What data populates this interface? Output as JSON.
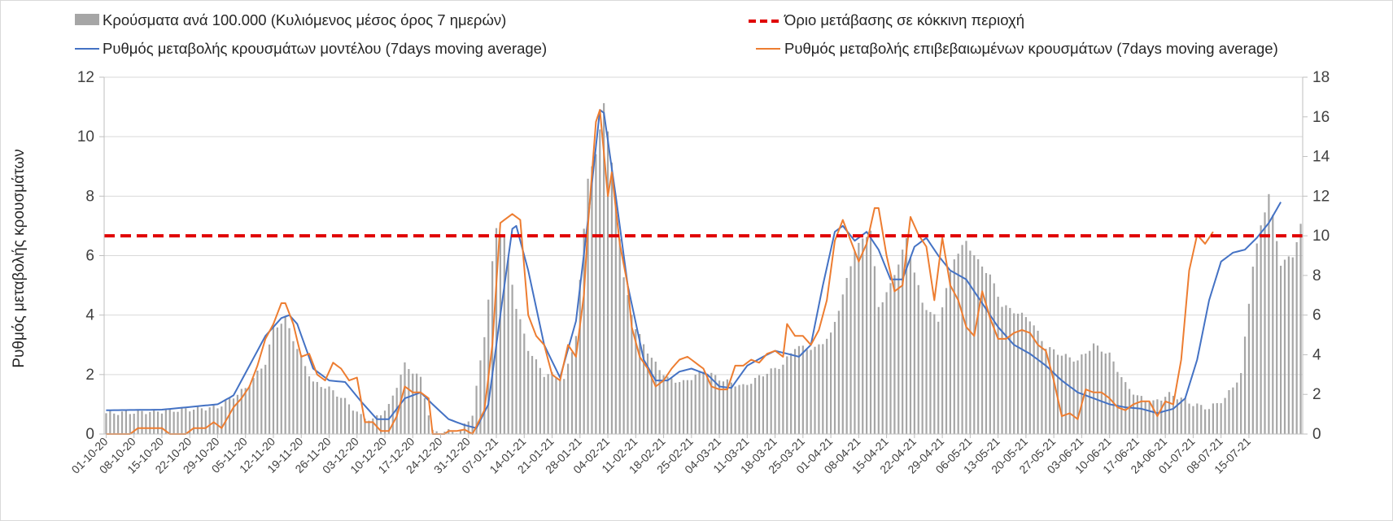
{
  "chart_data": {
    "type": "bar+line",
    "ylabel": "Ρυθμός μεταβολής κρουσμάτων",
    "y_left_range": [
      0,
      12
    ],
    "y_left_ticks": [
      "0",
      "2",
      "4",
      "6",
      "8",
      "10",
      "12"
    ],
    "y_right_range": [
      0,
      18
    ],
    "y_right_ticks": [
      "0",
      "2",
      "4",
      "6",
      "8",
      "10",
      "12",
      "14",
      "16",
      "18"
    ],
    "x_tick_labels": [
      "01-10-20",
      "08-10-20",
      "15-10-20",
      "22-10-20",
      "29-10-20",
      "05-11-20",
      "12-11-20",
      "19-11-20",
      "26-11-20",
      "03-12-20",
      "10-12-20",
      "17-12-20",
      "24-12-20",
      "31-12-20",
      "07-01-21",
      "14-01-21",
      "21-01-21",
      "28-01-21",
      "04-02-21",
      "11-02-21",
      "18-02-21",
      "25-02-21",
      "04-03-21",
      "11-03-21",
      "18-03-21",
      "25-03-21",
      "01-04-21",
      "08-04-21",
      "15-04-21",
      "22-04-21",
      "29-04-21",
      "06-05-21",
      "13-05-21",
      "20-05-21",
      "27-05-21",
      "03-06-21",
      "10-06-21",
      "17-06-21",
      "24-06-21",
      "01-07-21",
      "08-07-21",
      "15-07-21"
    ],
    "grid": "horizontal",
    "legend_position": "top",
    "threshold": {
      "name": "Όριο μετάβασης σε κόκκινη περιοχή",
      "value": 10,
      "axis": "right",
      "color": "#e00000"
    },
    "series": [
      {
        "name": "Κρούσματα ανά 100.000 (Κυλιόμενος μέσος όρος 7 ημερών)",
        "type": "bar",
        "axis": "right",
        "color": "#a6a6a6",
        "keyframes": [
          [
            0,
            1.05
          ],
          [
            14,
            1.15
          ],
          [
            28,
            1.35
          ],
          [
            35,
            2.3
          ],
          [
            40,
            3.6
          ],
          [
            42,
            5.3
          ],
          [
            45,
            5.8
          ],
          [
            48,
            4.3
          ],
          [
            52,
            2.6
          ],
          [
            56,
            2.3
          ],
          [
            60,
            1.7
          ],
          [
            64,
            0.9
          ],
          [
            67,
            0.7
          ],
          [
            71,
            1.4
          ],
          [
            75,
            3.5
          ],
          [
            79,
            2.8
          ],
          [
            82,
            0.1
          ],
          [
            89,
            0.15
          ],
          [
            92,
            1.0
          ],
          [
            95,
            5.0
          ],
          [
            98,
            10.4
          ],
          [
            100,
            10.0
          ],
          [
            103,
            6.4
          ],
          [
            106,
            4.3
          ],
          [
            110,
            3.0
          ],
          [
            112,
            3.0
          ],
          [
            115,
            2.7
          ],
          [
            118,
            5.0
          ],
          [
            121,
            13.0
          ],
          [
            123,
            14.0
          ],
          [
            125,
            16.8
          ],
          [
            128,
            12.0
          ],
          [
            130,
            7.8
          ],
          [
            133,
            5.3
          ],
          [
            137,
            3.8
          ],
          [
            141,
            2.8
          ],
          [
            145,
            2.6
          ],
          [
            150,
            3.2
          ],
          [
            155,
            2.7
          ],
          [
            160,
            2.4
          ],
          [
            165,
            3.0
          ],
          [
            170,
            3.5
          ],
          [
            173,
            4.4
          ],
          [
            178,
            4.3
          ],
          [
            182,
            5.0
          ],
          [
            185,
            7.0
          ],
          [
            188,
            9.3
          ],
          [
            192,
            10.3
          ],
          [
            194,
            6.4
          ],
          [
            197,
            7.5
          ],
          [
            201,
            9.8
          ],
          [
            205,
            6.6
          ],
          [
            209,
            5.7
          ],
          [
            213,
            8.9
          ],
          [
            216,
            9.7
          ],
          [
            219,
            8.7
          ],
          [
            222,
            8.0
          ],
          [
            225,
            6.5
          ],
          [
            228,
            6.2
          ],
          [
            232,
            5.8
          ],
          [
            236,
            4.4
          ],
          [
            240,
            4.0
          ],
          [
            244,
            3.7
          ],
          [
            248,
            4.5
          ],
          [
            252,
            4.0
          ],
          [
            256,
            2.5
          ],
          [
            259,
            1.9
          ],
          [
            263,
            1.6
          ],
          [
            267,
            2.0
          ],
          [
            270,
            1.8
          ],
          [
            273,
            1.5
          ],
          [
            277,
            1.3
          ],
          [
            281,
            1.8
          ],
          [
            285,
            3.0
          ],
          [
            288,
            8.5
          ],
          [
            290,
            10.5
          ],
          [
            292,
            12.1
          ],
          [
            295,
            8.6
          ],
          [
            298,
            9.0
          ],
          [
            300,
            10.5
          ]
        ]
      },
      {
        "name": "Ρυθμός μεταβολής κρουσμάτων μοντέλου (7days moving average)",
        "type": "line",
        "axis": "left",
        "color": "#4472c4",
        "keyframes": [
          [
            0,
            0.8
          ],
          [
            14,
            0.82
          ],
          [
            28,
            1.0
          ],
          [
            32,
            1.3
          ],
          [
            36,
            2.3
          ],
          [
            40,
            3.3
          ],
          [
            44,
            3.9
          ],
          [
            46,
            4.0
          ],
          [
            48,
            3.7
          ],
          [
            52,
            2.2
          ],
          [
            56,
            1.8
          ],
          [
            60,
            1.75
          ],
          [
            64,
            1.1
          ],
          [
            68,
            0.5
          ],
          [
            71,
            0.5
          ],
          [
            75,
            1.2
          ],
          [
            79,
            1.4
          ],
          [
            82,
            1.0
          ],
          [
            86,
            0.5
          ],
          [
            90,
            0.3
          ],
          [
            93,
            0.2
          ],
          [
            96,
            1.0
          ],
          [
            99,
            4.0
          ],
          [
            102,
            6.9
          ],
          [
            103,
            7.0
          ],
          [
            106,
            5.5
          ],
          [
            110,
            3.0
          ],
          [
            114,
            1.9
          ],
          [
            118,
            3.8
          ],
          [
            121,
            7.2
          ],
          [
            124,
            10.9
          ],
          [
            125,
            10.8
          ],
          [
            128,
            8.0
          ],
          [
            131,
            5.0
          ],
          [
            135,
            2.5
          ],
          [
            138,
            1.8
          ],
          [
            141,
            1.8
          ],
          [
            144,
            2.1
          ],
          [
            147,
            2.2
          ],
          [
            151,
            2.0
          ],
          [
            154,
            1.6
          ],
          [
            157,
            1.55
          ],
          [
            161,
            2.3
          ],
          [
            165,
            2.6
          ],
          [
            168,
            2.8
          ],
          [
            171,
            2.7
          ],
          [
            174,
            2.6
          ],
          [
            177,
            3.0
          ],
          [
            180,
            5.0
          ],
          [
            183,
            6.8
          ],
          [
            185,
            7.0
          ],
          [
            188,
            6.5
          ],
          [
            191,
            6.8
          ],
          [
            194,
            6.2
          ],
          [
            197,
            5.2
          ],
          [
            200,
            5.2
          ],
          [
            203,
            6.3
          ],
          [
            206,
            6.6
          ],
          [
            209,
            6.0
          ],
          [
            212,
            5.5
          ],
          [
            216,
            5.2
          ],
          [
            220,
            4.4
          ],
          [
            224,
            3.6
          ],
          [
            228,
            3.0
          ],
          [
            232,
            2.7
          ],
          [
            236,
            2.3
          ],
          [
            240,
            1.8
          ],
          [
            244,
            1.4
          ],
          [
            248,
            1.2
          ],
          [
            252,
            1.0
          ],
          [
            256,
            0.9
          ],
          [
            260,
            0.85
          ],
          [
            264,
            0.7
          ],
          [
            268,
            0.85
          ],
          [
            271,
            1.2
          ],
          [
            274,
            2.5
          ],
          [
            277,
            4.5
          ],
          [
            280,
            5.8
          ],
          [
            283,
            6.1
          ],
          [
            286,
            6.2
          ],
          [
            289,
            6.6
          ],
          [
            292,
            7.1
          ],
          [
            295,
            7.8
          ]
        ]
      },
      {
        "name": "Ρυθμός μεταβολής επιβεβαιωμένων κρουσμάτων (7days moving average)",
        "type": "line",
        "axis": "left",
        "color": "#ed7d31",
        "keyframes": [
          [
            0,
            0
          ],
          [
            6,
            0
          ],
          [
            8,
            0.2
          ],
          [
            14,
            0.2
          ],
          [
            16,
            0
          ],
          [
            20,
            0
          ],
          [
            22,
            0.2
          ],
          [
            25,
            0.2
          ],
          [
            27,
            0.4
          ],
          [
            29,
            0.2
          ],
          [
            32,
            0.9
          ],
          [
            34,
            1.2
          ],
          [
            36,
            1.6
          ],
          [
            38,
            2.3
          ],
          [
            40,
            3.2
          ],
          [
            42,
            3.7
          ],
          [
            44,
            4.4
          ],
          [
            45,
            4.4
          ],
          [
            47,
            3.7
          ],
          [
            49,
            2.6
          ],
          [
            51,
            2.7
          ],
          [
            53,
            2.0
          ],
          [
            55,
            1.8
          ],
          [
            57,
            2.4
          ],
          [
            59,
            2.2
          ],
          [
            61,
            1.8
          ],
          [
            63,
            1.9
          ],
          [
            65,
            0.4
          ],
          [
            67,
            0.4
          ],
          [
            69,
            0.1
          ],
          [
            71,
            0.1
          ],
          [
            73,
            0.6
          ],
          [
            75,
            1.6
          ],
          [
            77,
            1.4
          ],
          [
            79,
            1.4
          ],
          [
            81,
            1.2
          ],
          [
            82,
            0
          ],
          [
            85,
            0
          ],
          [
            86,
            0.1
          ],
          [
            88,
            0.1
          ],
          [
            90,
            0.15
          ],
          [
            92,
            0
          ],
          [
            95,
            0.8
          ],
          [
            97,
            3.0
          ],
          [
            99,
            7.1
          ],
          [
            100,
            7.2
          ],
          [
            102,
            7.4
          ],
          [
            104,
            7.2
          ],
          [
            106,
            4.0
          ],
          [
            108,
            3.3
          ],
          [
            110,
            3.0
          ],
          [
            112,
            2.0
          ],
          [
            114,
            1.8
          ],
          [
            116,
            3.0
          ],
          [
            118,
            2.6
          ],
          [
            120,
            4.7
          ],
          [
            121,
            7.0
          ],
          [
            123,
            10.5
          ],
          [
            124,
            10.9
          ],
          [
            126,
            8.0
          ],
          [
            127,
            8.8
          ],
          [
            129,
            6.4
          ],
          [
            131,
            5.0
          ],
          [
            132,
            3.6
          ],
          [
            134,
            2.6
          ],
          [
            136,
            2.2
          ],
          [
            138,
            1.6
          ],
          [
            140,
            1.8
          ],
          [
            142,
            2.2
          ],
          [
            144,
            2.5
          ],
          [
            146,
            2.6
          ],
          [
            148,
            2.4
          ],
          [
            150,
            2.2
          ],
          [
            152,
            1.6
          ],
          [
            154,
            1.5
          ],
          [
            156,
            1.5
          ],
          [
            158,
            2.3
          ],
          [
            160,
            2.3
          ],
          [
            162,
            2.5
          ],
          [
            164,
            2.4
          ],
          [
            166,
            2.7
          ],
          [
            168,
            2.8
          ],
          [
            170,
            2.6
          ],
          [
            171,
            3.7
          ],
          [
            173,
            3.3
          ],
          [
            175,
            3.3
          ],
          [
            177,
            3.0
          ],
          [
            179,
            3.5
          ],
          [
            181,
            4.5
          ],
          [
            183,
            6.5
          ],
          [
            185,
            7.2
          ],
          [
            187,
            6.5
          ],
          [
            189,
            5.8
          ],
          [
            191,
            6.4
          ],
          [
            193,
            7.6
          ],
          [
            194,
            7.6
          ],
          [
            196,
            6.0
          ],
          [
            198,
            4.8
          ],
          [
            200,
            5.0
          ],
          [
            202,
            7.3
          ],
          [
            204,
            6.7
          ],
          [
            206,
            6.3
          ],
          [
            208,
            4.5
          ],
          [
            210,
            6.6
          ],
          [
            212,
            5.0
          ],
          [
            214,
            4.5
          ],
          [
            216,
            3.6
          ],
          [
            218,
            3.3
          ],
          [
            220,
            4.8
          ],
          [
            222,
            3.9
          ],
          [
            224,
            3.2
          ],
          [
            226,
            3.2
          ],
          [
            228,
            3.4
          ],
          [
            230,
            3.5
          ],
          [
            232,
            3.4
          ],
          [
            234,
            3.0
          ],
          [
            236,
            2.8
          ],
          [
            238,
            1.8
          ],
          [
            240,
            0.6
          ],
          [
            242,
            0.7
          ],
          [
            244,
            0.5
          ],
          [
            246,
            1.5
          ],
          [
            248,
            1.4
          ],
          [
            250,
            1.4
          ],
          [
            252,
            1.2
          ],
          [
            254,
            0.9
          ],
          [
            256,
            0.8
          ],
          [
            258,
            1.0
          ],
          [
            260,
            1.1
          ],
          [
            262,
            1.1
          ],
          [
            264,
            0.6
          ],
          [
            266,
            1.1
          ],
          [
            268,
            1.0
          ],
          [
            270,
            2.5
          ],
          [
            272,
            5.5
          ],
          [
            274,
            6.7
          ],
          [
            276,
            6.4
          ],
          [
            278,
            6.8
          ]
        ]
      }
    ]
  }
}
